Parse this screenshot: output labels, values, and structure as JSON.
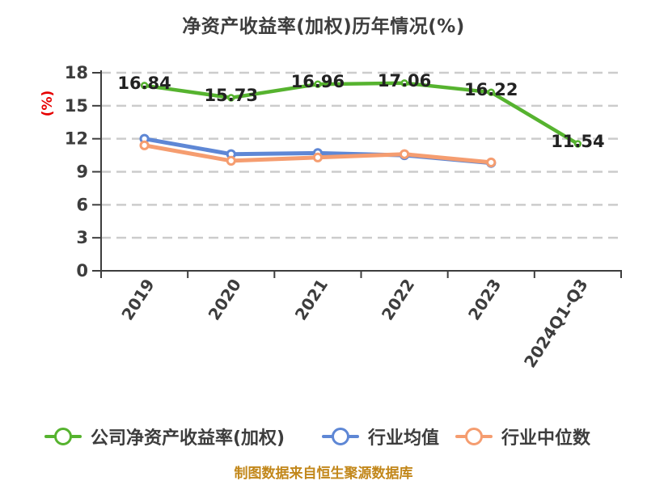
{
  "chart_data": {
    "type": "line",
    "title": "净资产收益率(加权)历年情况(%)",
    "ylabel": "(%)",
    "ylabel_color": "#e60000",
    "ylim": [
      0,
      18
    ],
    "yticks": [
      0,
      3,
      6,
      9,
      12,
      15,
      18
    ],
    "grid": "horizontal-dashed",
    "legend_position": "bottom",
    "categories": [
      "2019",
      "2020",
      "2021",
      "2022",
      "2023",
      "2024Q1-Q3"
    ],
    "series": [
      {
        "id": "company-roe",
        "name": "公司净资产收益率(加权)",
        "color": "#56b32f",
        "zorder": 3,
        "labeled": true,
        "values": [
          16.84,
          15.73,
          16.96,
          17.06,
          16.22,
          11.54
        ]
      },
      {
        "id": "industry-mean",
        "name": "行业均值",
        "color": "#5e87d5",
        "zorder": 1,
        "labeled": false,
        "values": [
          12.0,
          10.6,
          10.7,
          10.5,
          9.8,
          null
        ]
      },
      {
        "id": "industry-median",
        "name": "行业中位数",
        "color": "#f59d70",
        "zorder": 2,
        "labeled": false,
        "values": [
          11.4,
          10.0,
          10.3,
          10.6,
          9.85,
          null
        ]
      }
    ]
  },
  "footer_note": "制图数据来自恒生聚源数据库",
  "footer_color": "#c2871a"
}
